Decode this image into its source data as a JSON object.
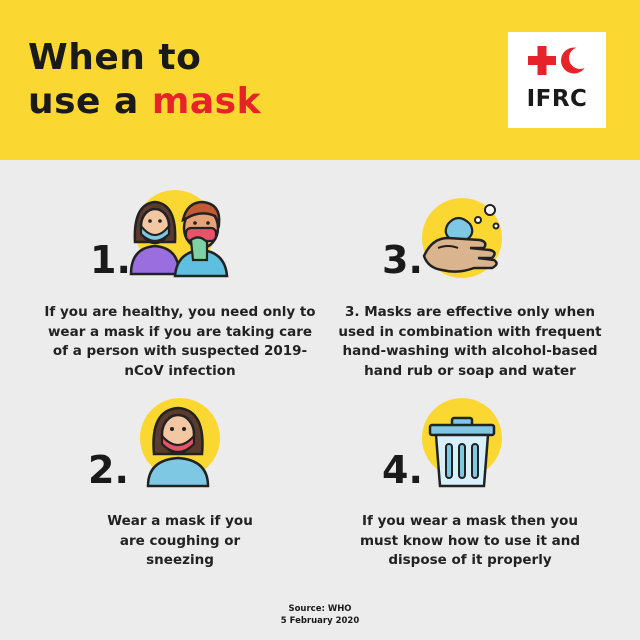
{
  "header": {
    "title_line1": "When to",
    "title_line2_prefix": "use a ",
    "title_line2_accent": "mask",
    "accent_color": "#e62329",
    "background_color": "#fbd731"
  },
  "logo": {
    "text": "IFRC",
    "icon": "red-cross-red-crescent-icon"
  },
  "items": [
    {
      "number": "1.",
      "icon": "two-people-masked-icon",
      "text": "If you are healthy, you need only to wear a mask if you are taking care of a person with suspected 2019-nCoV infection"
    },
    {
      "number": "2.",
      "icon": "person-masked-icon",
      "text": "Wear a mask if you are coughing or sneezing"
    },
    {
      "number": "3.",
      "icon": "hand-washing-icon",
      "text": "3. Masks are effective only when used in combination with frequent hand-washing with alcohol-based hand rub or soap and water"
    },
    {
      "number": "4.",
      "icon": "trash-bin-icon",
      "text": "If you wear a mask then you must know how to use it and dispose of it properly"
    }
  ],
  "source": {
    "line1": "Source: WHO",
    "line2": "5 February 2020"
  }
}
